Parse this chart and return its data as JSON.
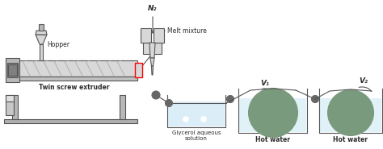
{
  "bg_color": "#ffffff",
  "text_color": "#2b2b2b",
  "line_color": "#555555",
  "fill_light_blue": "#cce8f4",
  "fill_green_gray": "#7a9a7e",
  "fill_green_dark": "#3a5e3c",
  "fill_gray_light": "#d8d8d8",
  "fill_gray_mid": "#b8b8b8",
  "fill_gray_dark": "#909090",
  "labels": {
    "hopper": "Hopper",
    "extruder": "Twin screw extruder",
    "n2": "N₂",
    "melt": "Melt mixture",
    "glycerol": "Glycerol aqueous\nsolution",
    "hot_water1": "Hot water",
    "hot_water2": "Hot water",
    "v1": "V₁",
    "v2": "V₂"
  }
}
